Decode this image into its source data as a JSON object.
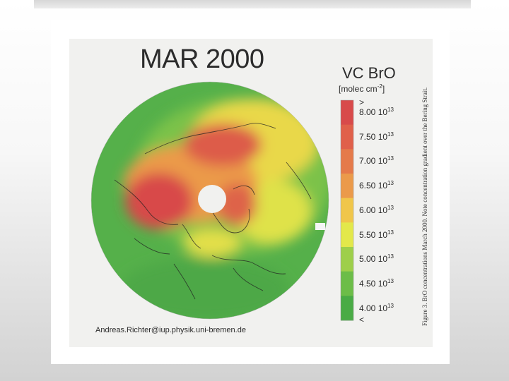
{
  "slide": {
    "map_title": "MAR 2000",
    "credit": "Andreas.Richter@iup.physik.uni-bremen.de",
    "caption": "Figure 3.  BrO concentrations March 2000.  Note concentration gradient over the Bering Strait."
  },
  "legend": {
    "title": "VC BrO",
    "unit_base": "[molec cm",
    "unit_exp": "-2",
    "unit_close": "]",
    "above_symbol": ">",
    "below_symbol": "<",
    "entries": [
      {
        "mantissa": "8.00 10",
        "exp": "13"
      },
      {
        "mantissa": "7.50 10",
        "exp": "13"
      },
      {
        "mantissa": "7.00 10",
        "exp": "13"
      },
      {
        "mantissa": "6.50 10",
        "exp": "13"
      },
      {
        "mantissa": "6.00 10",
        "exp": "13"
      },
      {
        "mantissa": "5.50 10",
        "exp": "13"
      },
      {
        "mantissa": "5.00 10",
        "exp": "13"
      },
      {
        "mantissa": "4.50 10",
        "exp": "13"
      },
      {
        "mantissa": "4.00 10",
        "exp": "13"
      }
    ],
    "colors": [
      "#d84a4a",
      "#e0604a",
      "#e57a4a",
      "#eb9a4a",
      "#f0c64a",
      "#e3e84a",
      "#9ecf4a",
      "#6cbd48",
      "#49ab45"
    ]
  }
}
